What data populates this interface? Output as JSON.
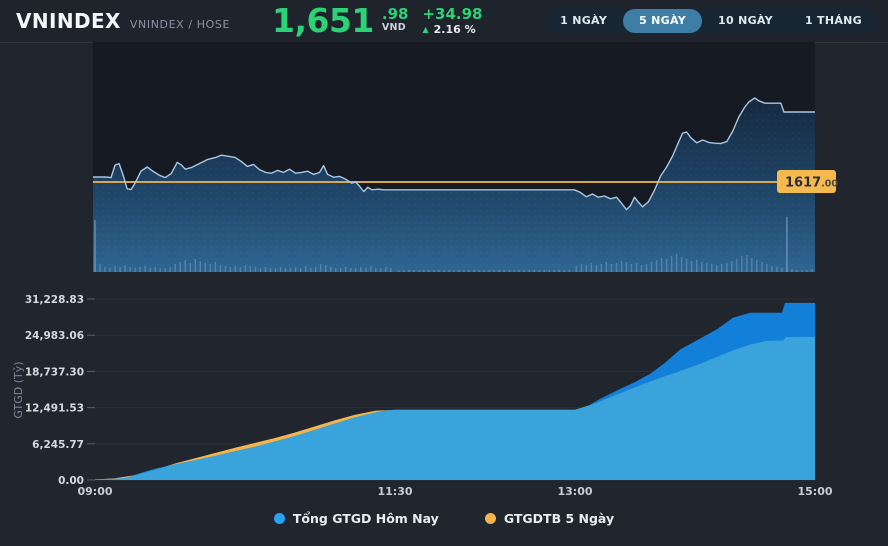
{
  "header": {
    "title": "VNINDEX",
    "subtitle": "VNINDEX / HOSE",
    "price_int": "1,651",
    "price_dec": ".98",
    "currency": "VND",
    "change": "+34.98",
    "change_pct": "2.16 %",
    "price_color": "#2bd276"
  },
  "range_buttons": [
    {
      "key": "1-day",
      "label": "1 NGÀY",
      "active": false
    },
    {
      "key": "5-days",
      "label": "5 NGÀY",
      "active": true
    },
    {
      "key": "10-days",
      "label": "10 NGÀY",
      "active": false
    },
    {
      "key": "1-month",
      "label": "1 THÁNG",
      "active": false
    }
  ],
  "chart_data": [
    {
      "type": "line",
      "name": "vnindex-intraday-price",
      "x_unit": "minutes-from-09:00",
      "x_range": [
        0,
        360
      ],
      "ylim": [
        1572,
        1687
      ],
      "grid": false,
      "line_color": "#a9c7e3",
      "fill_gradient": [
        "#16293f",
        "#1f4568",
        "#2f6692"
      ],
      "reference_line": {
        "value": 1617.0,
        "color": "#d7a74a",
        "label_main": "1617",
        "label_frac": ".00",
        "label_bg": "#f5b94f"
      },
      "series": [
        {
          "name": "VNINDEX",
          "points": [
            [
              0,
              1619.5
            ],
            [
              6,
              1619.5
            ],
            [
              9,
              1619.2
            ],
            [
              11,
              1625.5
            ],
            [
              13,
              1626.2
            ],
            [
              15,
              1620.5
            ],
            [
              17,
              1613.6
            ],
            [
              19,
              1613.2
            ],
            [
              21,
              1616.5
            ],
            [
              24,
              1622.5
            ],
            [
              27,
              1624.5
            ],
            [
              30,
              1622.3
            ],
            [
              33,
              1620.4
            ],
            [
              36,
              1619.2
            ],
            [
              39,
              1621.2
            ],
            [
              42,
              1626.8
            ],
            [
              44,
              1625.6
            ],
            [
              46,
              1623.4
            ],
            [
              49,
              1624.2
            ],
            [
              53,
              1626.2
            ],
            [
              57,
              1628.2
            ],
            [
              61,
              1629.2
            ],
            [
              64,
              1630.4
            ],
            [
              68,
              1629.8
            ],
            [
              71,
              1629.2
            ],
            [
              74,
              1627.2
            ],
            [
              77,
              1624.8
            ],
            [
              80,
              1625.8
            ],
            [
              83,
              1623.2
            ],
            [
              86,
              1621.8
            ],
            [
              89,
              1621.4
            ],
            [
              92,
              1622.8
            ],
            [
              95,
              1621.8
            ],
            [
              98,
              1623.4
            ],
            [
              101,
              1621.4
            ],
            [
              104,
              1621.8
            ],
            [
              107,
              1622.4
            ],
            [
              110,
              1620.8
            ],
            [
              113,
              1621.8
            ],
            [
              115,
              1625.2
            ],
            [
              117,
              1620.8
            ],
            [
              120,
              1619.4
            ],
            [
              123,
              1619.8
            ],
            [
              126,
              1618.4
            ],
            [
              129,
              1616.4
            ],
            [
              131,
              1617.0
            ],
            [
              133,
              1614.8
            ],
            [
              135,
              1612.2
            ],
            [
              137,
              1614.4
            ],
            [
              139,
              1613.1
            ],
            [
              142,
              1613.4
            ],
            [
              145,
              1613.1
            ],
            [
              150,
              1613.1
            ],
            [
              240,
              1613.1
            ],
            [
              243,
              1611.8
            ],
            [
              246,
              1609.6
            ],
            [
              249,
              1611.0
            ],
            [
              252,
              1609.4
            ],
            [
              255,
              1610.0
            ],
            [
              258,
              1608.6
            ],
            [
              261,
              1609.4
            ],
            [
              263,
              1607.0
            ],
            [
              266,
              1603.2
            ],
            [
              268,
              1605.2
            ],
            [
              270,
              1609.4
            ],
            [
              272,
              1606.8
            ],
            [
              274,
              1604.6
            ],
            [
              277,
              1607.2
            ],
            [
              280,
              1613.0
            ],
            [
              283,
              1620.0
            ],
            [
              286,
              1624.5
            ],
            [
              289,
              1630.0
            ],
            [
              292,
              1637.0
            ],
            [
              294,
              1641.4
            ],
            [
              296,
              1642.0
            ],
            [
              298,
              1639.2
            ],
            [
              301,
              1636.6
            ],
            [
              304,
              1638.0
            ],
            [
              307,
              1636.8
            ],
            [
              310,
              1636.4
            ],
            [
              313,
              1636.2
            ],
            [
              316,
              1637.2
            ],
            [
              319,
              1642.5
            ],
            [
              322,
              1649.5
            ],
            [
              325,
              1654.5
            ],
            [
              327,
              1657.0
            ],
            [
              330,
              1659.0
            ],
            [
              332,
              1657.6
            ],
            [
              335,
              1656.4
            ],
            [
              339,
              1656.4
            ],
            [
              343,
              1656.4
            ],
            [
              344.5,
              1652.0
            ],
            [
              360,
              1651.98
            ]
          ]
        }
      ],
      "volume_bars": {
        "color": "#9dc0dd",
        "unit": "relative-height-px",
        "points": [
          [
            1,
            52
          ],
          [
            3.5,
            8
          ],
          [
            6,
            5
          ],
          [
            8.5,
            4
          ],
          [
            11,
            6
          ],
          [
            13.5,
            5
          ],
          [
            16,
            7
          ],
          [
            18.5,
            5
          ],
          [
            21,
            4
          ],
          [
            23.5,
            5
          ],
          [
            26,
            6
          ],
          [
            28.5,
            4
          ],
          [
            31,
            5
          ],
          [
            33.5,
            4
          ],
          [
            36,
            4
          ],
          [
            38.5,
            5
          ],
          [
            41,
            8
          ],
          [
            43.5,
            10
          ],
          [
            46,
            12
          ],
          [
            48.5,
            9
          ],
          [
            51,
            13
          ],
          [
            53.5,
            11
          ],
          [
            56,
            9
          ],
          [
            58.5,
            8
          ],
          [
            61,
            10
          ],
          [
            63.5,
            7
          ],
          [
            66,
            6
          ],
          [
            68.5,
            5
          ],
          [
            71,
            6
          ],
          [
            73.5,
            5
          ],
          [
            76,
            7
          ],
          [
            78.5,
            6
          ],
          [
            81,
            5
          ],
          [
            83.5,
            4
          ],
          [
            86,
            5
          ],
          [
            88.5,
            4
          ],
          [
            91,
            4
          ],
          [
            93.5,
            5
          ],
          [
            96,
            4
          ],
          [
            98.5,
            4
          ],
          [
            101,
            5
          ],
          [
            103.5,
            4
          ],
          [
            106,
            6
          ],
          [
            108.5,
            4
          ],
          [
            111,
            5
          ],
          [
            113.5,
            8
          ],
          [
            116,
            7
          ],
          [
            118.5,
            5
          ],
          [
            121,
            4
          ],
          [
            123.5,
            4
          ],
          [
            126,
            5
          ],
          [
            128.5,
            4
          ],
          [
            131,
            4
          ],
          [
            133.5,
            5
          ],
          [
            136,
            4
          ],
          [
            138.5,
            6
          ],
          [
            141,
            4
          ],
          [
            143.5,
            4
          ],
          [
            146,
            5
          ],
          [
            148.5,
            4
          ],
          [
            241,
            6
          ],
          [
            243.5,
            8
          ],
          [
            246,
            7
          ],
          [
            248.5,
            9
          ],
          [
            251,
            7
          ],
          [
            253.5,
            8
          ],
          [
            256,
            10
          ],
          [
            258.5,
            8
          ],
          [
            261,
            9
          ],
          [
            263.5,
            11
          ],
          [
            266,
            10
          ],
          [
            268.5,
            8
          ],
          [
            271,
            9
          ],
          [
            273.5,
            7
          ],
          [
            276,
            8
          ],
          [
            278.5,
            10
          ],
          [
            281,
            12
          ],
          [
            283.5,
            14
          ],
          [
            286,
            13
          ],
          [
            288.5,
            16
          ],
          [
            291,
            18
          ],
          [
            293.5,
            15
          ],
          [
            296,
            13
          ],
          [
            298.5,
            11
          ],
          [
            301,
            12
          ],
          [
            303.5,
            10
          ],
          [
            306,
            9
          ],
          [
            308.5,
            8
          ],
          [
            311,
            7
          ],
          [
            313.5,
            8
          ],
          [
            316,
            9
          ],
          [
            318.5,
            11
          ],
          [
            321,
            13
          ],
          [
            323.5,
            16
          ],
          [
            326,
            17
          ],
          [
            328.5,
            14
          ],
          [
            331,
            12
          ],
          [
            333.5,
            10
          ],
          [
            336,
            8
          ],
          [
            338.5,
            6
          ],
          [
            341,
            5
          ],
          [
            343.5,
            4
          ],
          [
            346,
            55
          ],
          [
            348.5,
            3
          ],
          [
            351,
            2
          ],
          [
            353.5,
            2
          ],
          [
            356,
            2
          ],
          [
            358.5,
            3
          ]
        ],
        "lunch_bars": {
          "t_start": 152.5,
          "t_end": 237.5,
          "step": 2.5,
          "h": 2
        }
      }
    },
    {
      "type": "area",
      "name": "cumulative-trading-value",
      "ylabel": "GTGD (Tỷ)",
      "x_unit": "minutes-from-09:00",
      "x_range": [
        0,
        360
      ],
      "ylim": [
        0,
        31228.83
      ],
      "grid": true,
      "legend_position": "bottom",
      "x_ticks": [
        {
          "t": 0,
          "label": "09:00"
        },
        {
          "t": 150,
          "label": "11:30"
        },
        {
          "t": 240,
          "label": "13:00"
        },
        {
          "t": 360,
          "label": "15:00"
        }
      ],
      "y_ticks": [
        {
          "v": 31228.83,
          "label": "31,228.83"
        },
        {
          "v": 24983.06,
          "label": "24,983.06"
        },
        {
          "v": 18737.3,
          "label": "18,737.30"
        },
        {
          "v": 12491.53,
          "label": "12,491.53"
        },
        {
          "v": 6245.77,
          "label": "6,245.77"
        },
        {
          "v": 0,
          "label": "0.00"
        }
      ],
      "overlap_fill": "#3aa3dc",
      "series": [
        {
          "key": "today",
          "name": "Tổng GTGD Hôm Nay",
          "color": "#2aa1f1",
          "fill": "#1280d8",
          "points": [
            [
              0,
              120
            ],
            [
              6,
              180
            ],
            [
              12,
              260
            ],
            [
              16,
              400
            ],
            [
              20,
              900
            ],
            [
              25,
              1450
            ],
            [
              30,
              1950
            ],
            [
              40,
              2700
            ],
            [
              50,
              3400
            ],
            [
              60,
              4150
            ],
            [
              70,
              4950
            ],
            [
              80,
              5750
            ],
            [
              90,
              6650
            ],
            [
              100,
              7600
            ],
            [
              110,
              8650
            ],
            [
              120,
              9750
            ],
            [
              130,
              10800
            ],
            [
              140,
              11650
            ],
            [
              146,
              12000
            ],
            [
              150,
              12150
            ],
            [
              240,
              12150
            ],
            [
              246,
              12700
            ],
            [
              252.5,
              14000
            ],
            [
              262.5,
              15700
            ],
            [
              270,
              16900
            ],
            [
              277.5,
              18300
            ],
            [
              285,
              20200
            ],
            [
              292.5,
              22500
            ],
            [
              302.5,
              24400
            ],
            [
              311,
              26000
            ],
            [
              319,
              28000
            ],
            [
              327.5,
              28850
            ],
            [
              343.5,
              28850
            ],
            [
              345,
              30550
            ],
            [
              360,
              30560
            ]
          ]
        },
        {
          "key": "5day-avg",
          "name": "GTGDTB 5 Ngày",
          "color": "#f2b44c",
          "fill": "#f3b44c",
          "points": [
            [
              0,
              80
            ],
            [
              10,
              300
            ],
            [
              20,
              850
            ],
            [
              30,
              1750
            ],
            [
              40,
              2850
            ],
            [
              50,
              3750
            ],
            [
              60,
              4650
            ],
            [
              70,
              5550
            ],
            [
              80,
              6400
            ],
            [
              90,
              7250
            ],
            [
              100,
              8200
            ],
            [
              110,
              9250
            ],
            [
              120,
              10300
            ],
            [
              130,
              11250
            ],
            [
              140,
              11950
            ],
            [
              150,
              12100
            ],
            [
              240,
              12100
            ],
            [
              250,
              13200
            ],
            [
              260,
              14600
            ],
            [
              270,
              16000
            ],
            [
              280,
              17300
            ],
            [
              290,
              18500
            ],
            [
              300,
              19700
            ],
            [
              310,
              21100
            ],
            [
              320,
              22500
            ],
            [
              328,
              23400
            ],
            [
              335,
              23950
            ],
            [
              339,
              24050
            ],
            [
              344,
              24050
            ],
            [
              345.5,
              24650
            ],
            [
              360,
              24700
            ]
          ]
        }
      ]
    }
  ]
}
